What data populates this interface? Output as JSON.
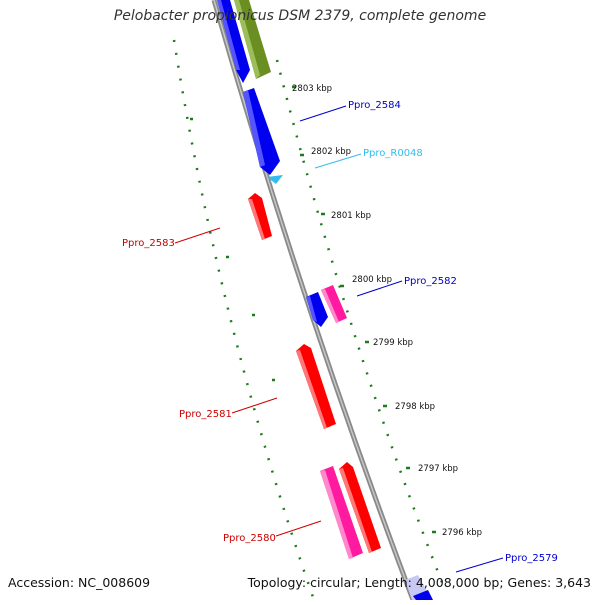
{
  "title": "Pelobacter propionicus DSM 2379, complete genome",
  "footer": {
    "accession": "Accession: NC_008609",
    "summary": "Topology: circular; Length: 4,008,000 bp; Genes: 3,643"
  },
  "colors": {
    "backbone": "#8a8a8a",
    "tick": "#1f7a1f",
    "gene_blue": "#0000ee",
    "gene_red": "#ff0000",
    "gene_pink": "#ff1aa0",
    "gene_olive": "#6b8e23",
    "gene_rna": "#33bbee",
    "gene_lavender": "#c8c8f5"
  },
  "scale_labels": [
    "2803 kbp",
    "2802 kbp",
    "2801 kbp",
    "2800 kbp",
    "2799 kbp",
    "2798 kbp",
    "2797 kbp",
    "2796 kbp"
  ],
  "gene_labels": [
    {
      "text": "Ppro_2584",
      "color": "#0000cc"
    },
    {
      "text": "Ppro_R0048",
      "color": "#33bbee"
    },
    {
      "text": "Ppro_2583",
      "color": "#cc0000"
    },
    {
      "text": "Ppro_2582",
      "color": "#0000cc"
    },
    {
      "text": "Ppro_2581",
      "color": "#cc0000"
    },
    {
      "text": "Ppro_2580",
      "color": "#cc0000"
    },
    {
      "text": "Ppro_2579",
      "color": "#0000cc"
    }
  ]
}
